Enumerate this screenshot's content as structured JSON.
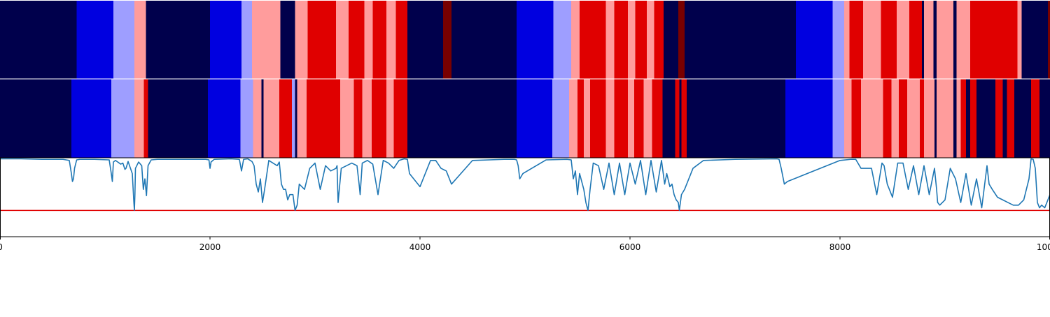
{
  "chart_data": {
    "type": "heatmap",
    "title": "",
    "xlabel": "",
    "ylabel": "",
    "xlim": [
      0,
      10000
    ],
    "x_ticks": [
      {
        "value": 0,
        "label": "0"
      },
      {
        "value": 2000,
        "label": "2000"
      },
      {
        "value": 4000,
        "label": "4000"
      },
      {
        "value": 6000,
        "label": "6000"
      },
      {
        "value": 8000,
        "label": "8000"
      },
      {
        "value": 10000,
        "label": "10000"
      }
    ],
    "colors": {
      "0": "#00004c",
      "1": "#0000e0",
      "2": "#9e9eff",
      "3": "#ff9c9c",
      "4": "#e00000",
      "5": "#780000",
      "line": "#1f77b4",
      "threshold": "#e00000"
    },
    "state_rows": [
      {
        "name": "",
        "segments": [
          [
            0,
            730,
            0
          ],
          [
            730,
            1080,
            1
          ],
          [
            1080,
            1280,
            2
          ],
          [
            1280,
            1390,
            3
          ],
          [
            1390,
            2000,
            0
          ],
          [
            2000,
            2300,
            1
          ],
          [
            2300,
            2400,
            2
          ],
          [
            2400,
            2670,
            3
          ],
          [
            2670,
            2810,
            0
          ],
          [
            2810,
            2930,
            3
          ],
          [
            2930,
            3200,
            4
          ],
          [
            3200,
            3320,
            3
          ],
          [
            3320,
            3470,
            4
          ],
          [
            3470,
            3550,
            3
          ],
          [
            3550,
            3680,
            4
          ],
          [
            3680,
            3770,
            3
          ],
          [
            3770,
            3880,
            4
          ],
          [
            3880,
            4220,
            0
          ],
          [
            4220,
            4300,
            5
          ],
          [
            4300,
            4920,
            0
          ],
          [
            4920,
            5270,
            1
          ],
          [
            5270,
            5440,
            2
          ],
          [
            5440,
            5520,
            3
          ],
          [
            5520,
            5770,
            4
          ],
          [
            5770,
            5850,
            3
          ],
          [
            5850,
            5980,
            4
          ],
          [
            5980,
            6050,
            3
          ],
          [
            6050,
            6160,
            4
          ],
          [
            6160,
            6230,
            3
          ],
          [
            6230,
            6320,
            4
          ],
          [
            6320,
            6460,
            0
          ],
          [
            6460,
            6520,
            5
          ],
          [
            6520,
            7580,
            0
          ],
          [
            7580,
            7930,
            1
          ],
          [
            7930,
            8040,
            2
          ],
          [
            8040,
            8090,
            3
          ],
          [
            8090,
            8220,
            4
          ],
          [
            8220,
            8390,
            3
          ],
          [
            8390,
            8540,
            4
          ],
          [
            8540,
            8660,
            3
          ],
          [
            8660,
            8780,
            4
          ],
          [
            8780,
            8800,
            0
          ],
          [
            8800,
            8890,
            3
          ],
          [
            8890,
            8920,
            0
          ],
          [
            8920,
            9080,
            3
          ],
          [
            9080,
            9110,
            0
          ],
          [
            9110,
            9240,
            3
          ],
          [
            9240,
            9620,
            4
          ],
          [
            9620,
            9690,
            4
          ],
          [
            9690,
            9730,
            3
          ],
          [
            9730,
            9980,
            0
          ],
          [
            9980,
            10020,
            5
          ],
          [
            10020,
            10060,
            0
          ]
        ]
      },
      {
        "name": "",
        "segments": [
          [
            0,
            680,
            0
          ],
          [
            680,
            700,
            1
          ],
          [
            700,
            1060,
            1
          ],
          [
            1060,
            1280,
            2
          ],
          [
            1280,
            1370,
            3
          ],
          [
            1370,
            1410,
            4
          ],
          [
            1410,
            1980,
            0
          ],
          [
            1980,
            2290,
            1
          ],
          [
            2290,
            2410,
            2
          ],
          [
            2410,
            2490,
            3
          ],
          [
            2490,
            2510,
            0
          ],
          [
            2510,
            2660,
            3
          ],
          [
            2660,
            2710,
            4
          ],
          [
            2710,
            2780,
            4
          ],
          [
            2780,
            2810,
            2
          ],
          [
            2810,
            2830,
            0
          ],
          [
            2830,
            2850,
            3
          ],
          [
            2850,
            2920,
            3
          ],
          [
            2920,
            3240,
            4
          ],
          [
            3240,
            3370,
            3
          ],
          [
            3370,
            3450,
            4
          ],
          [
            3450,
            3540,
            3
          ],
          [
            3540,
            3680,
            4
          ],
          [
            3680,
            3750,
            3
          ],
          [
            3750,
            3880,
            4
          ],
          [
            3880,
            4920,
            0
          ],
          [
            4920,
            5260,
            1
          ],
          [
            5260,
            5420,
            2
          ],
          [
            5420,
            5500,
            3
          ],
          [
            5500,
            5560,
            4
          ],
          [
            5560,
            5620,
            3
          ],
          [
            5620,
            5770,
            4
          ],
          [
            5770,
            5850,
            3
          ],
          [
            5850,
            5980,
            4
          ],
          [
            5980,
            6040,
            3
          ],
          [
            6040,
            6130,
            4
          ],
          [
            6130,
            6210,
            3
          ],
          [
            6210,
            6310,
            4
          ],
          [
            6310,
            6430,
            0
          ],
          [
            6430,
            6470,
            4
          ],
          [
            6470,
            6490,
            0
          ],
          [
            6490,
            6540,
            4
          ],
          [
            6540,
            7480,
            0
          ],
          [
            7480,
            7930,
            1
          ],
          [
            7930,
            8040,
            2
          ],
          [
            8040,
            8110,
            3
          ],
          [
            8110,
            8200,
            4
          ],
          [
            8200,
            8410,
            3
          ],
          [
            8410,
            8490,
            4
          ],
          [
            8490,
            8560,
            3
          ],
          [
            8560,
            8640,
            4
          ],
          [
            8640,
            8760,
            3
          ],
          [
            8760,
            8800,
            4
          ],
          [
            8800,
            8900,
            3
          ],
          [
            8900,
            8920,
            0
          ],
          [
            8920,
            8940,
            3
          ],
          [
            8940,
            9080,
            3
          ],
          [
            9080,
            9110,
            0
          ],
          [
            9110,
            9150,
            3
          ],
          [
            9150,
            9200,
            4
          ],
          [
            9200,
            9240,
            0
          ],
          [
            9240,
            9300,
            4
          ],
          [
            9300,
            9480,
            0
          ],
          [
            9480,
            9550,
            4
          ],
          [
            9550,
            9590,
            0
          ],
          [
            9590,
            9660,
            4
          ],
          [
            9660,
            9820,
            0
          ],
          [
            9820,
            9900,
            4
          ],
          [
            9900,
            10060,
            0
          ]
        ]
      }
    ],
    "line_series": {
      "name": "",
      "ylim": [
        -1.1,
        0.4
      ],
      "threshold": -0.6,
      "x": [
        0,
        200,
        400,
        600,
        660,
        680,
        690,
        700,
        710,
        730,
        760,
        900,
        1040,
        1060,
        1070,
        1080,
        1100,
        1150,
        1170,
        1190,
        1200,
        1220,
        1260,
        1275,
        1280,
        1285,
        1290,
        1320,
        1350,
        1365,
        1380,
        1395,
        1410,
        1440,
        1500,
        1800,
        1960,
        1990,
        2000,
        2010,
        2040,
        2200,
        2280,
        2300,
        2320,
        2360,
        2400,
        2420,
        2440,
        2460,
        2480,
        2500,
        2520,
        2560,
        2600,
        2640,
        2660,
        2680,
        2700,
        2720,
        2740,
        2760,
        2790,
        2810,
        2830,
        2850,
        2900,
        2950,
        3000,
        3050,
        3100,
        3150,
        3200,
        3210,
        3220,
        3250,
        3300,
        3350,
        3400,
        3420,
        3430,
        3450,
        3500,
        3550,
        3600,
        3650,
        3700,
        3750,
        3800,
        3850,
        3880,
        3900,
        4000,
        4100,
        4150,
        4200,
        4250,
        4300,
        4500,
        4800,
        4900,
        4920,
        4935,
        4950,
        4980,
        5200,
        5400,
        5440,
        5460,
        5480,
        5500,
        5520,
        5560,
        5580,
        5600,
        5620,
        5650,
        5700,
        5750,
        5800,
        5850,
        5900,
        5950,
        6000,
        6050,
        6100,
        6150,
        6200,
        6250,
        6300,
        6330,
        6350,
        6380,
        6400,
        6420,
        6440,
        6460,
        6470,
        6490,
        6520,
        6560,
        6600,
        6700,
        7000,
        7400,
        7420,
        7440,
        7470,
        7500,
        8000,
        8100,
        8150,
        8200,
        8300,
        8350,
        8400,
        8420,
        8450,
        8500,
        8550,
        8600,
        8650,
        8700,
        8750,
        8800,
        8850,
        8900,
        8920,
        8930,
        8950,
        9000,
        9050,
        9100,
        9150,
        9200,
        9250,
        9300,
        9350,
        9400,
        9420,
        9450,
        9500,
        9550,
        9600,
        9650,
        9700,
        9750,
        9800,
        9820,
        9840,
        9860,
        9880,
        9900,
        9920,
        9950,
        9970,
        10000,
        10040,
        10060
      ],
      "y": [
        0.38,
        0.38,
        0.37,
        0.37,
        0.35,
        0.1,
        -0.05,
        0.0,
        0.2,
        0.36,
        0.37,
        0.37,
        0.36,
        0.1,
        -0.05,
        0.32,
        0.35,
        0.28,
        0.3,
        0.18,
        0.2,
        0.33,
        0.1,
        -0.45,
        -0.6,
        -0.3,
        0.2,
        0.32,
        0.25,
        -0.2,
        0.0,
        -0.32,
        0.25,
        0.36,
        0.37,
        0.37,
        0.37,
        0.36,
        0.2,
        0.32,
        0.37,
        0.38,
        0.37,
        0.15,
        0.37,
        0.38,
        0.33,
        0.25,
        -0.1,
        -0.25,
        0.0,
        -0.45,
        -0.2,
        0.35,
        0.3,
        0.25,
        0.32,
        -0.1,
        -0.2,
        -0.2,
        -0.4,
        -0.3,
        -0.3,
        -0.6,
        -0.5,
        -0.1,
        -0.2,
        0.2,
        0.3,
        -0.2,
        0.25,
        0.15,
        0.2,
        0.25,
        -0.45,
        0.2,
        0.25,
        0.3,
        0.25,
        -0.1,
        -0.3,
        0.3,
        0.35,
        0.28,
        -0.3,
        0.35,
        0.3,
        0.2,
        0.35,
        0.38,
        0.37,
        0.1,
        -0.15,
        0.35,
        0.35,
        0.2,
        0.15,
        -0.1,
        0.35,
        0.37,
        0.37,
        0.36,
        0.25,
        0.0,
        0.1,
        0.36,
        0.37,
        0.36,
        0.0,
        0.15,
        -0.3,
        0.1,
        -0.2,
        -0.45,
        -0.6,
        -0.2,
        0.3,
        0.25,
        -0.2,
        0.3,
        -0.3,
        0.3,
        -0.3,
        0.3,
        -0.1,
        0.35,
        -0.3,
        0.35,
        -0.25,
        0.35,
        -0.1,
        0.1,
        -0.15,
        -0.1,
        -0.3,
        -0.4,
        -0.45,
        -0.6,
        -0.3,
        -0.2,
        0.0,
        0.2,
        0.35,
        0.37,
        0.38,
        0.37,
        0.2,
        -0.1,
        -0.05,
        0.35,
        0.37,
        0.37,
        0.2,
        0.2,
        -0.3,
        0.3,
        0.25,
        -0.1,
        -0.35,
        0.3,
        0.3,
        -0.2,
        0.25,
        -0.3,
        0.25,
        -0.3,
        0.2,
        -0.2,
        -0.45,
        -0.5,
        -0.4,
        0.2,
        0.0,
        -0.45,
        0.1,
        -0.5,
        0.0,
        -0.55,
        0.25,
        -0.1,
        -0.2,
        -0.35,
        -0.4,
        -0.45,
        -0.5,
        -0.5,
        -0.4,
        0.0,
        0.38,
        0.37,
        0.2,
        -0.45,
        -0.55,
        -0.5,
        -0.55,
        -0.45,
        -0.3,
        0.0,
        0.2,
        0.36,
        0.38,
        0.38
      ]
    }
  }
}
